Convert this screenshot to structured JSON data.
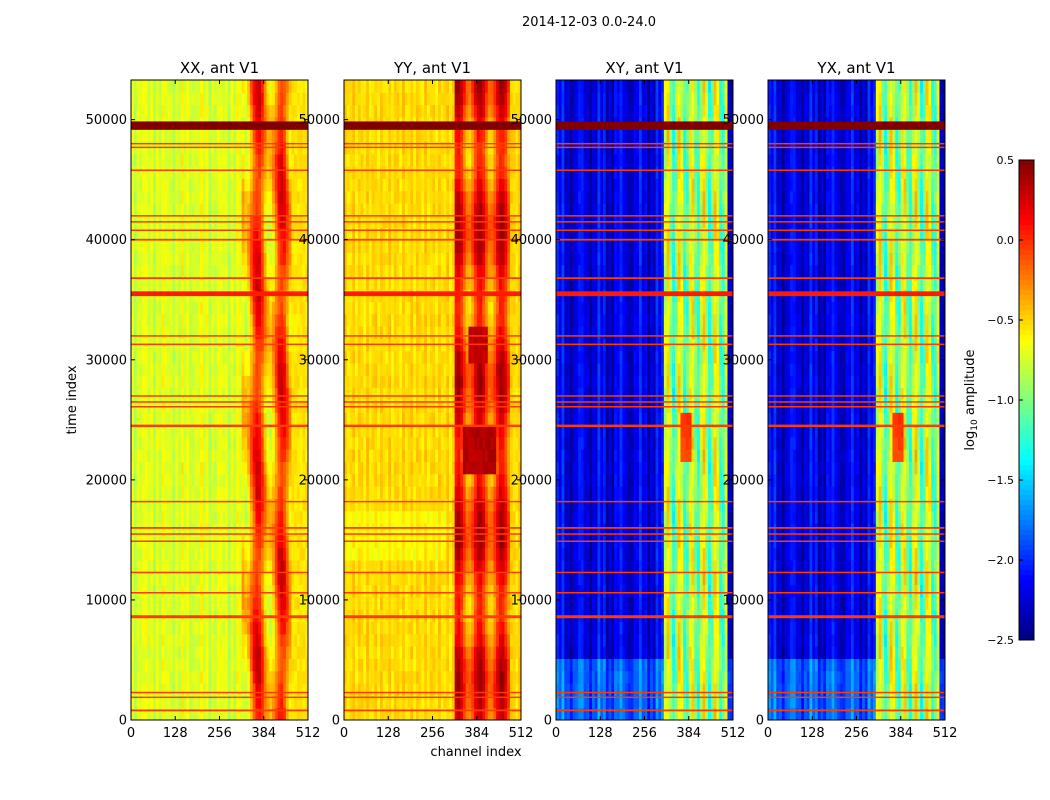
{
  "suptitle": "2014-12-03 0.0-24.0",
  "chart_data": {
    "type": "heatmap",
    "panels": [
      {
        "title": "XX, ant V1",
        "base": "xx"
      },
      {
        "title": "YY, ant V1",
        "base": "yy"
      },
      {
        "title": "XY, ant V1",
        "base": "cross"
      },
      {
        "title": "YX, ant V1",
        "base": "cross"
      }
    ],
    "xlabel": "channel index",
    "ylabel": "time index",
    "xlim": [
      0,
      512
    ],
    "ylim": [
      0,
      53300
    ],
    "xticks": [
      0,
      128,
      256,
      384,
      512
    ],
    "yticks": [
      0,
      10000,
      20000,
      30000,
      40000,
      50000
    ],
    "colorbar": {
      "label": "log10 amplitude",
      "label_base": "log",
      "label_sub": "10",
      "label_rest": " amplitude",
      "range": [
        -2.5,
        0.5
      ],
      "ticks": [
        0.5,
        0.0,
        -0.5,
        -1.0,
        -1.5,
        -2.0,
        -2.5
      ],
      "tick_labels": [
        "0.5",
        "0.0",
        "−0.5",
        "−1.0",
        "−1.5",
        "−2.0",
        "−2.5"
      ],
      "colormap": "jet"
    },
    "flagged_rows": [
      {
        "t": 49500,
        "dt": 700,
        "v": 0.5
      },
      {
        "t": 35500,
        "dt": 400,
        "v": 0.05
      },
      {
        "t": 48000,
        "dt": 120,
        "v": -0.05
      },
      {
        "t": 47700,
        "dt": 100,
        "v": -0.05
      },
      {
        "t": 45800,
        "dt": 100,
        "v": -0.05
      },
      {
        "t": 42000,
        "dt": 100,
        "v": -0.05
      },
      {
        "t": 41500,
        "dt": 100,
        "v": -0.05
      },
      {
        "t": 40800,
        "dt": 100,
        "v": -0.05
      },
      {
        "t": 40000,
        "dt": 150,
        "v": -0.05
      },
      {
        "t": 36800,
        "dt": 150,
        "v": -0.05
      },
      {
        "t": 32000,
        "dt": 100,
        "v": -0.05
      },
      {
        "t": 31300,
        "dt": 100,
        "v": -0.05
      },
      {
        "t": 27000,
        "dt": 100,
        "v": -0.05
      },
      {
        "t": 26500,
        "dt": 100,
        "v": -0.05
      },
      {
        "t": 26100,
        "dt": 100,
        "v": -0.05
      },
      {
        "t": 24500,
        "dt": 200,
        "v": -0.05
      },
      {
        "t": 18200,
        "dt": 100,
        "v": -0.05
      },
      {
        "t": 16000,
        "dt": 150,
        "v": -0.05
      },
      {
        "t": 15500,
        "dt": 100,
        "v": -0.05
      },
      {
        "t": 14900,
        "dt": 100,
        "v": -0.05
      },
      {
        "t": 12300,
        "dt": 100,
        "v": -0.05
      },
      {
        "t": 10600,
        "dt": 120,
        "v": -0.05
      },
      {
        "t": 8600,
        "dt": 250,
        "v": -0.05
      },
      {
        "t": 2300,
        "dt": 100,
        "v": -0.05
      },
      {
        "t": 1900,
        "dt": 100,
        "v": -0.05
      },
      {
        "t": 800,
        "dt": 150,
        "v": -0.05
      }
    ]
  }
}
